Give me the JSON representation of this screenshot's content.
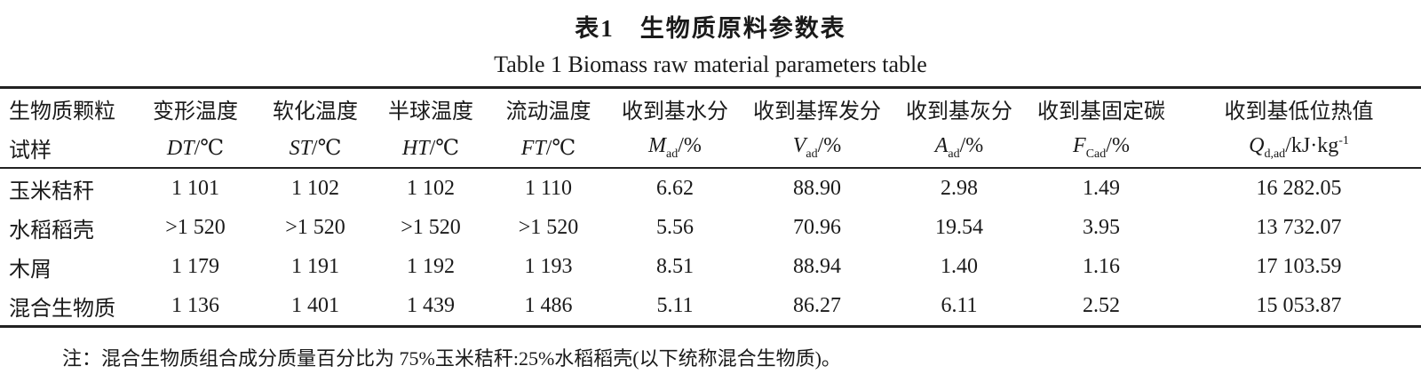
{
  "title": "表1　生物质原料参数表",
  "subtitle": "Table 1 Biomass raw material parameters table",
  "table": {
    "header": [
      "生物质颗粒",
      "变形温度",
      "软化温度",
      "半球温度",
      "流动温度",
      "收到基水分",
      "收到基挥发分",
      "收到基灰分",
      "收到基固定碳",
      "收到基低位热值"
    ],
    "units": [
      {
        "text": "试样"
      },
      {
        "sym": "DT",
        "unit": "/℃"
      },
      {
        "sym": "ST",
        "unit": "/℃"
      },
      {
        "sym": "HT",
        "unit": "/℃"
      },
      {
        "sym": "FT",
        "unit": "/℃"
      },
      {
        "sym": "M",
        "sub": "ad",
        "unit": "/%"
      },
      {
        "sym": "V",
        "sub": "ad",
        "unit": "/%"
      },
      {
        "sym": "A",
        "sub": "ad",
        "unit": "/%"
      },
      {
        "sym": "F",
        "sub": "Cad",
        "unit": "/%"
      },
      {
        "sym": "Q",
        "sub": "d,ad",
        "unit": "/kJ·kg",
        "sup": "-1"
      }
    ],
    "rows": [
      [
        "玉米秸秆",
        "1 101",
        "1 102",
        "1 102",
        "1 110",
        "6.62",
        "88.90",
        "2.98",
        "1.49",
        "16 282.05"
      ],
      [
        "水稻稻壳",
        ">1 520",
        ">1 520",
        ">1 520",
        ">1 520",
        "5.56",
        "70.96",
        "19.54",
        "3.95",
        "13 732.07"
      ],
      [
        "木屑",
        "1 179",
        "1 191",
        "1 192",
        "1 193",
        "8.51",
        "88.94",
        "1.40",
        "1.16",
        "17 103.59"
      ],
      [
        "混合生物质",
        "1 136",
        "1 401",
        "1 439",
        "1 486",
        "5.11",
        "86.27",
        "6.11",
        "2.52",
        "15 053.87"
      ]
    ]
  },
  "note": "注：混合生物质组合成分质量百分比为 75%玉米秸秆:25%水稻稻壳(以下统称混合生物质)。"
}
